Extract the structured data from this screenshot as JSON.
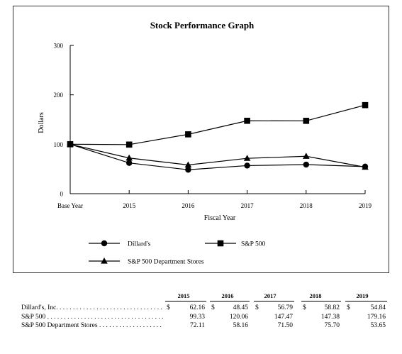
{
  "chart_data": {
    "type": "line",
    "title": "Stock Performance Graph",
    "xlabel": "Fiscal Year",
    "ylabel": "Dollars",
    "categories": [
      "Base Year",
      "2015",
      "2016",
      "2017",
      "2018",
      "2019"
    ],
    "ylim": [
      0,
      300
    ],
    "yticks": [
      0,
      100,
      200,
      300
    ],
    "series": [
      {
        "name": "Dillard's",
        "marker": "circle",
        "values": [
          100,
          62.16,
          48.45,
          56.79,
          58.82,
          54.84
        ]
      },
      {
        "name": "S&P 500",
        "marker": "square",
        "values": [
          100,
          99.33,
          120.06,
          147.47,
          147.38,
          179.16
        ]
      },
      {
        "name": "S&P 500 Department Stores",
        "marker": "triangle",
        "values": [
          100,
          72.11,
          58.16,
          71.5,
          75.7,
          53.65
        ]
      }
    ],
    "legend": "bottom",
    "grid": false
  },
  "table": {
    "years": [
      "2015",
      "2016",
      "2017",
      "2018",
      "2019"
    ],
    "currency_symbol": "$",
    "rows": [
      {
        "label": "Dillard's, Inc.",
        "values": [
          "62.16",
          "48.45",
          "56.79",
          "58.82",
          "54.84"
        ],
        "show_currency": true
      },
      {
        "label": "S&P 500",
        "values": [
          "99.33",
          "120.06",
          "147.47",
          "147.38",
          "179.16"
        ],
        "show_currency": false
      },
      {
        "label": "S&P 500 Department Stores",
        "values": [
          "72.11",
          "58.16",
          "71.50",
          "75.70",
          "53.65"
        ],
        "show_currency": false
      }
    ]
  }
}
